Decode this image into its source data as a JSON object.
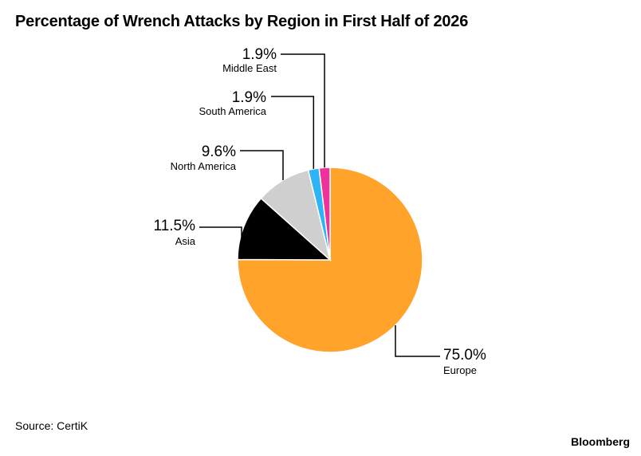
{
  "title": "Percentage of Wrench Attacks by Region in First Half of 2026",
  "source": "Source: CertiK",
  "brand": "Bloomberg",
  "chart_data": {
    "type": "pie",
    "title": "Percentage of Wrench Attacks by Region in First Half of 2026",
    "slices": [
      {
        "label": "Europe",
        "value": 75.0,
        "value_label": "75.0%",
        "color": "#FFA32B"
      },
      {
        "label": "Asia",
        "value": 11.5,
        "value_label": "11.5%",
        "color": "#000000"
      },
      {
        "label": "North America",
        "value": 9.6,
        "value_label": "9.6%",
        "color": "#CFCFCF"
      },
      {
        "label": "South America",
        "value": 1.9,
        "value_label": "1.9%",
        "color": "#2EB3F5"
      },
      {
        "label": "Middle East",
        "value": 1.9,
        "value_label": "1.9%",
        "color": "#F0319C"
      }
    ],
    "start": "12 o'clock",
    "direction": "clockwise",
    "legend": "none (direct labels)"
  }
}
